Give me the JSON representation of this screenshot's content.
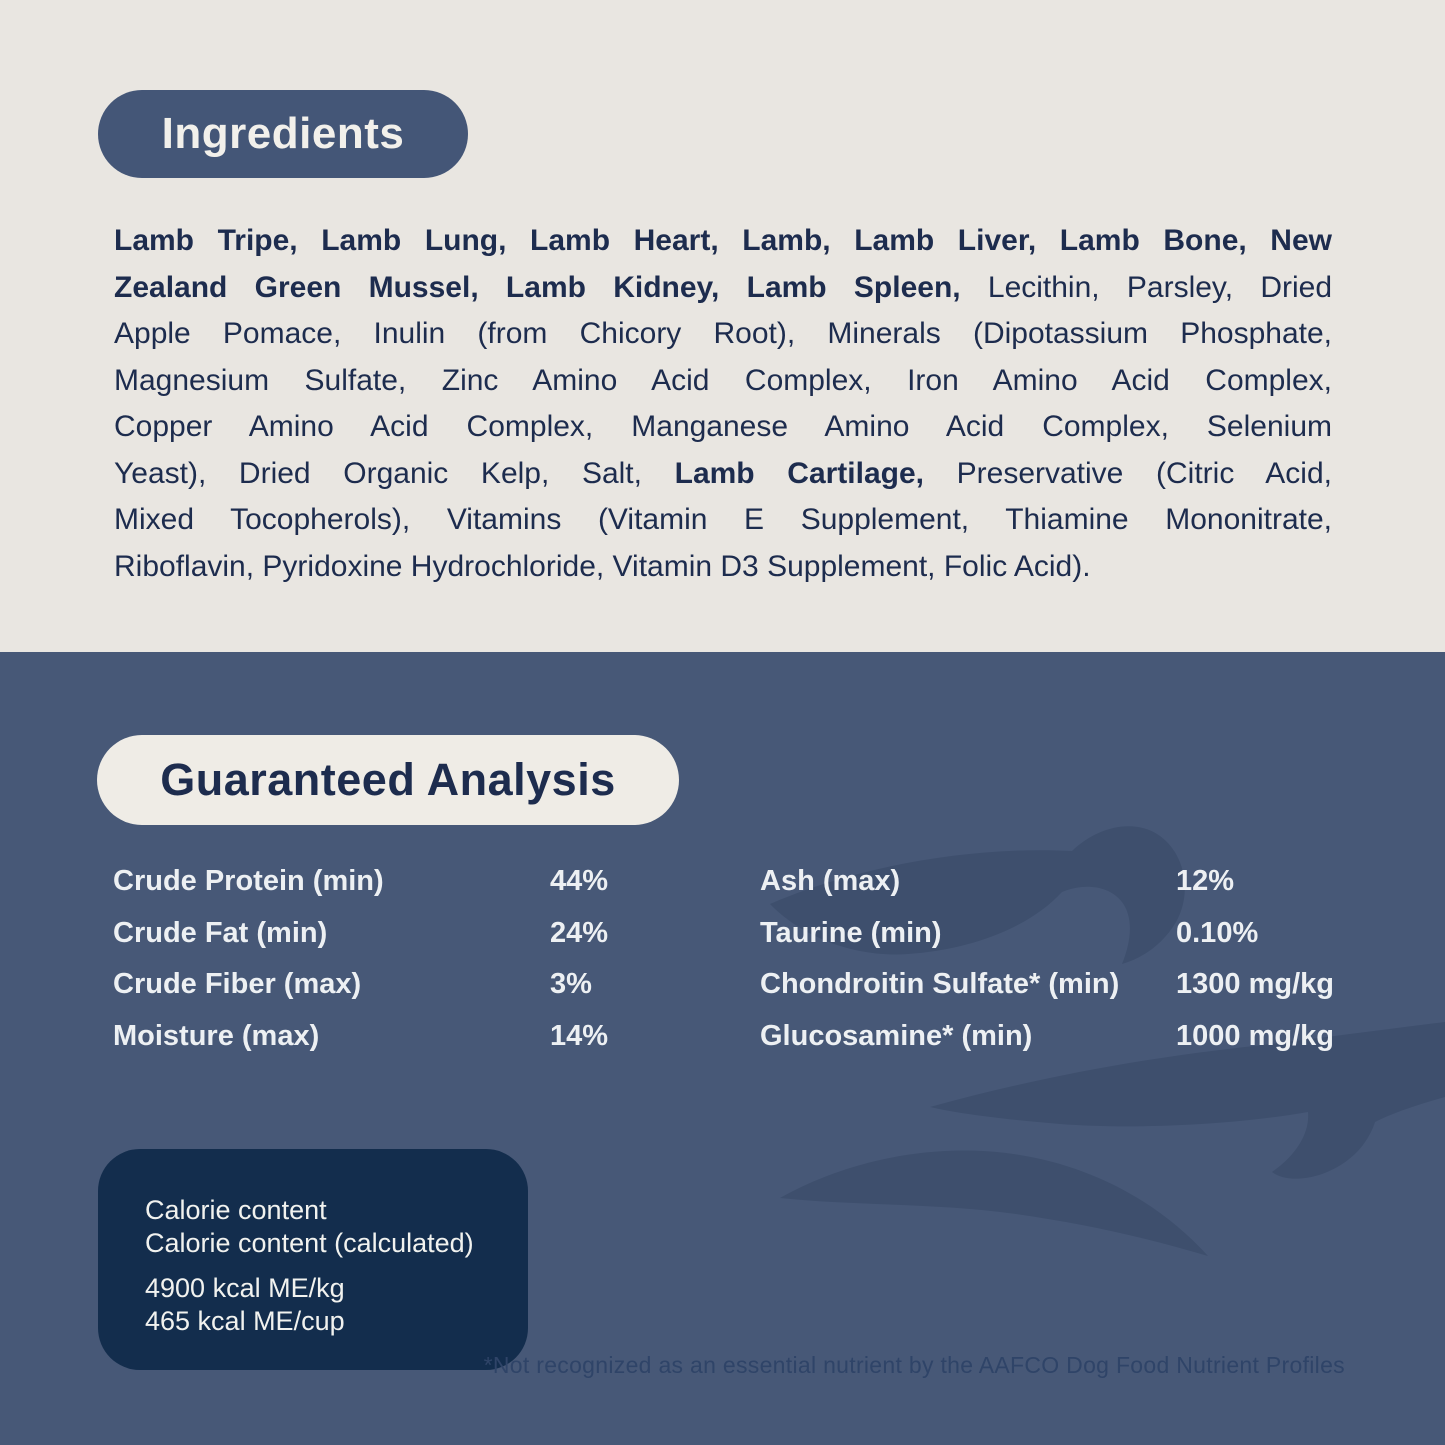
{
  "colors": {
    "cream_background": "#E9E6E1",
    "navy_text": "#1D2C4E",
    "ingredients_pill_blue": "#445677",
    "section_slate_blue": "#475877",
    "swirl_decoration_blue": "#3E4F6D",
    "calorie_box_navy": "#132D4D",
    "light_text": "#EDF0F3",
    "footnote_text": "#2F4468"
  },
  "ingredients": {
    "title": "Ingredients",
    "lines": [
      [
        {
          "text": "Lamb Tripe, Lamb Lung, Lamb Heart, Lamb, Lamb Liver, Lamb Bone, New",
          "bold": true
        }
      ],
      [
        {
          "text": "Zealand Green Mussel, Lamb Kidney, Lamb Spleen,",
          "bold": true
        },
        {
          "text": " Lecithin, Parsley, Dried",
          "bold": false
        }
      ],
      [
        {
          "text": "Apple Pomace, Inulin (from Chicory Root), Minerals (Dipotassium Phosphate,",
          "bold": false
        }
      ],
      [
        {
          "text": "Magnesium Sulfate, Zinc Amino Acid Complex, Iron Amino Acid Complex,",
          "bold": false
        }
      ],
      [
        {
          "text": "Copper Amino Acid Complex, Manganese Amino Acid Complex, Selenium",
          "bold": false
        }
      ],
      [
        {
          "text": "Yeast), Dried Organic Kelp, Salt, ",
          "bold": false
        },
        {
          "text": "Lamb Cartilage,",
          "bold": true
        },
        {
          "text": " Preservative (Citric Acid,",
          "bold": false
        }
      ],
      [
        {
          "text": "Mixed Tocopherols), Vitamins (Vitamin E Supplement, Thiamine Mononitrate,",
          "bold": false
        }
      ],
      [
        {
          "text": "Riboflavin, Pyridoxine Hydrochloride, Vitamin D3 Supplement, Folic Acid).",
          "bold": false
        }
      ]
    ]
  },
  "guaranteed_analysis": {
    "title": "Guaranteed Analysis",
    "left_column": [
      {
        "label": "Crude Protein (min)",
        "value": "44%"
      },
      {
        "label": "Crude Fat (min)",
        "value": "24%"
      },
      {
        "label": "Crude Fiber (max)",
        "value": "3%"
      },
      {
        "label": "Moisture (max)",
        "value": "14%"
      }
    ],
    "right_column": [
      {
        "label": "Ash (max)",
        "value": "12%"
      },
      {
        "label": "Taurine (min)",
        "value": "0.10%"
      },
      {
        "label": "Chondroitin Sulfate* (min)",
        "value": "1300 mg/kg"
      },
      {
        "label": "Glucosamine* (min)",
        "value": "1000 mg/kg"
      }
    ]
  },
  "calorie_content": {
    "heading_lines": [
      "Calorie content",
      "Calorie content (calculated)"
    ],
    "value_lines": [
      "4900 kcal ME/kg",
      "465 kcal ME/cup"
    ]
  },
  "footnote": "*Not recognized as an essential nutrient by the AAFCO Dog Food Nutrient Profiles",
  "decoration": "wind-swirl"
}
